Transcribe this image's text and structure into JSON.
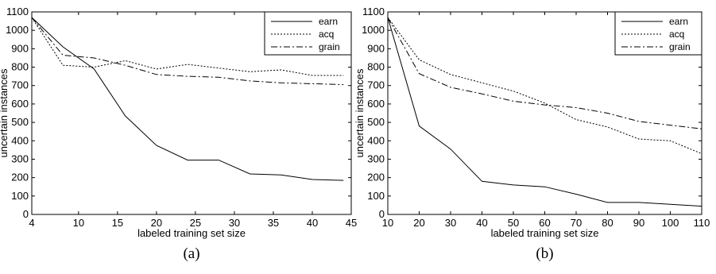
{
  "chart_data": [
    {
      "type": "line",
      "caption": "(a)",
      "xlabel": "labeled training set size",
      "ylabel": "uncertain instances",
      "xlim": [
        4,
        45
      ],
      "ylim": [
        0,
        1100
      ],
      "xticks": [
        4,
        10,
        15,
        20,
        25,
        30,
        35,
        40,
        45
      ],
      "yticks": [
        0,
        100,
        200,
        300,
        400,
        500,
        600,
        700,
        800,
        900,
        1000,
        1100
      ],
      "grid": false,
      "legend_position": "top-right",
      "series": [
        {
          "name": "earn",
          "style": "solid",
          "x": [
            4,
            8,
            12,
            16,
            20,
            24,
            28,
            32,
            36,
            40,
            44
          ],
          "y": [
            1070,
            910,
            790,
            535,
            375,
            295,
            295,
            220,
            215,
            190,
            185
          ]
        },
        {
          "name": "acq",
          "style": "dotted",
          "x": [
            4,
            8,
            12,
            16,
            20,
            24,
            28,
            32,
            36,
            40,
            44
          ],
          "y": [
            1070,
            810,
            800,
            835,
            790,
            815,
            795,
            775,
            785,
            755,
            755
          ]
        },
        {
          "name": "grain",
          "style": "dashdot",
          "x": [
            4,
            8,
            12,
            16,
            20,
            24,
            28,
            32,
            36,
            40,
            44
          ],
          "y": [
            1070,
            865,
            850,
            810,
            760,
            750,
            745,
            725,
            715,
            710,
            705
          ]
        }
      ]
    },
    {
      "type": "line",
      "caption": "(b)",
      "xlabel": "labeled training set size",
      "ylabel": "uncertain instances",
      "xlim": [
        10,
        110
      ],
      "ylim": [
        0,
        1100
      ],
      "xticks": [
        10,
        20,
        30,
        40,
        50,
        60,
        70,
        80,
        90,
        100,
        110
      ],
      "yticks": [
        0,
        100,
        200,
        300,
        400,
        500,
        600,
        700,
        800,
        900,
        1000,
        1100
      ],
      "grid": false,
      "legend_position": "top-right",
      "series": [
        {
          "name": "earn",
          "style": "solid",
          "x": [
            10,
            20,
            30,
            40,
            50,
            60,
            70,
            80,
            90,
            100,
            110
          ],
          "y": [
            1070,
            480,
            355,
            180,
            160,
            150,
            110,
            65,
            65,
            55,
            45
          ]
        },
        {
          "name": "acq",
          "style": "dotted",
          "x": [
            10,
            20,
            30,
            40,
            50,
            60,
            70,
            80,
            90,
            100,
            110
          ],
          "y": [
            1070,
            840,
            760,
            715,
            670,
            605,
            515,
            475,
            410,
            400,
            330
          ]
        },
        {
          "name": "grain",
          "style": "dashdot",
          "x": [
            10,
            20,
            30,
            40,
            50,
            60,
            70,
            80,
            90,
            100,
            110
          ],
          "y": [
            1070,
            765,
            690,
            655,
            615,
            595,
            580,
            550,
            505,
            485,
            465
          ]
        }
      ]
    }
  ]
}
